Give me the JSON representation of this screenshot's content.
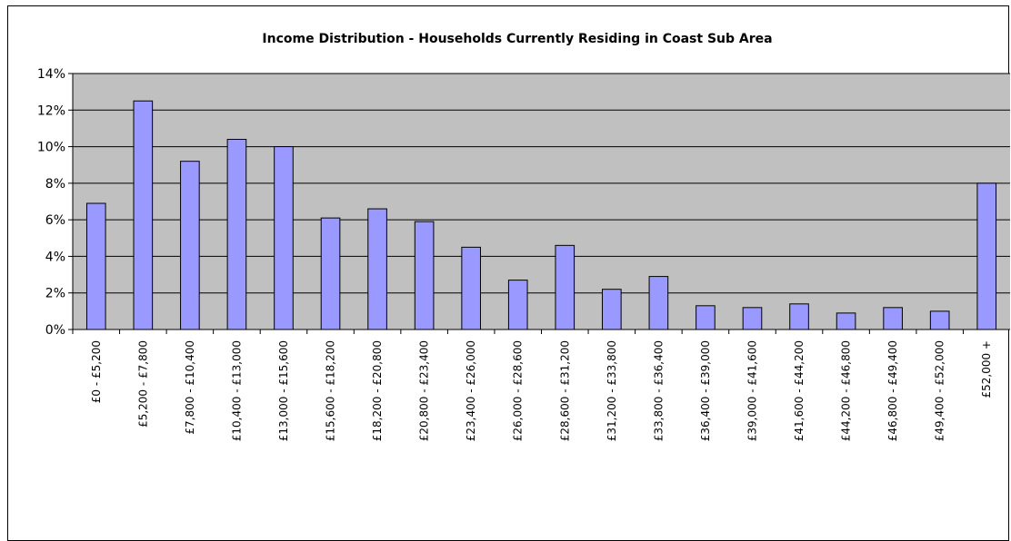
{
  "chart_data": {
    "type": "bar",
    "title": "Income Distribution - Households Currently Residing in Coast Sub Area",
    "xlabel": "",
    "ylabel": "",
    "ylim": [
      0,
      14
    ],
    "y_ticks": [
      "0%",
      "2%",
      "4%",
      "6%",
      "8%",
      "10%",
      "12%",
      "14%"
    ],
    "y_unit": "%",
    "grid": true,
    "legend": "none",
    "colors": {
      "bar": "#9999ff",
      "plot_area": "#c0c0c0",
      "grid": "#000000"
    },
    "categories": [
      "£0 - £5,200",
      "£5,200 - £7,800",
      "£7,800 - £10,400",
      "£10,400 - £13,000",
      "£13,000 - £15,600",
      "£15,600 - £18,200",
      "£18,200 - £20,800",
      "£20,800 - £23,400",
      "£23,400 - £26,000",
      "£26,000 - £28,600",
      "£28,600 - £31,200",
      "£31,200 - £33,800",
      "£33,800 - £36,400",
      "£36,400 - £39,000",
      "£39,000 - £41,600",
      "£41,600 - £44,200",
      "£44,200 - £46,800",
      "£46,800 - £49,400",
      "£49,400 - £52,000",
      "£52,000 +"
    ],
    "values": [
      6.9,
      12.5,
      9.2,
      10.4,
      10.0,
      6.1,
      6.6,
      5.9,
      4.5,
      2.7,
      4.6,
      2.2,
      2.9,
      1.3,
      1.2,
      1.4,
      0.9,
      1.2,
      1.0,
      8.0
    ]
  }
}
